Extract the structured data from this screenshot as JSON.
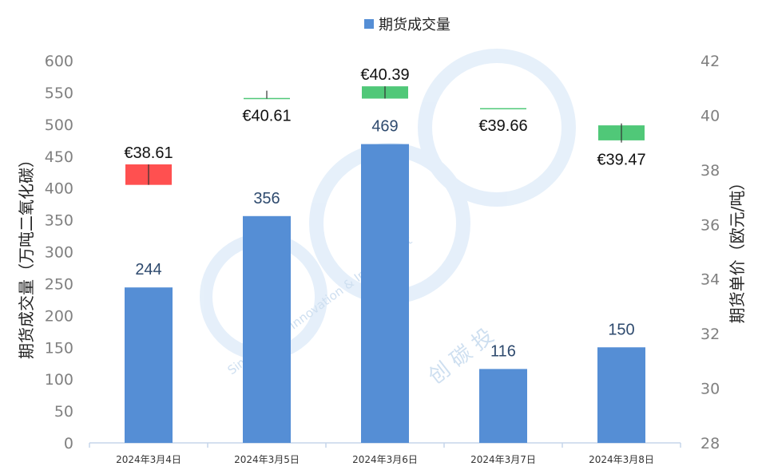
{
  "chart_data": {
    "type": "bar",
    "categories": [
      "2024年3月4日",
      "2024年3月5日",
      "2024年3月6日",
      "2024年3月7日",
      "2024年3月8日"
    ],
    "series": [
      {
        "name": "期货成交量",
        "axis": "left",
        "values": [
          244,
          356,
          469,
          116,
          150
        ],
        "labels": [
          "244",
          "356",
          "469",
          "116",
          "150"
        ],
        "color": "#558ed5"
      },
      {
        "axis": "right",
        "type": "candlestick",
        "ohlc": [
          {
            "open": 38.2,
            "close": 37.45,
            "high": 38.2,
            "low": 37.45,
            "color": "#ff5050"
          },
          {
            "open": 40.61,
            "close": 40.61,
            "high": 40.9,
            "low": 40.61,
            "color": "#50c878"
          },
          {
            "open": 40.61,
            "close": 41.06,
            "high": 41.06,
            "low": 40.61,
            "color": "#50c878"
          },
          {
            "open": 40.24,
            "close": 40.24,
            "high": 40.24,
            "low": 40.24,
            "color": "#50c878"
          },
          {
            "open": 39.08,
            "close": 39.63,
            "high": 39.7,
            "low": 39.0,
            "color": "#50c878"
          }
        ],
        "labels": [
          "€38.61",
          "€40.61",
          "€40.39",
          "€39.66",
          "€39.47"
        ]
      }
    ],
    "y_left": {
      "label": "期货成交量（万吨二氧化碳）",
      "min": 0,
      "max": 600,
      "step": 50
    },
    "y_right": {
      "label": "期货单价（欧元/吨）",
      "min": 28,
      "max": 42,
      "step": 2
    },
    "legend": {
      "placement": "top-center",
      "entries": [
        "期货成交量"
      ]
    },
    "grid": false
  },
  "watermark": {
    "brand_cn": "创 碳 投",
    "arc_text": "Sino Carbon Innovation & Investment"
  }
}
